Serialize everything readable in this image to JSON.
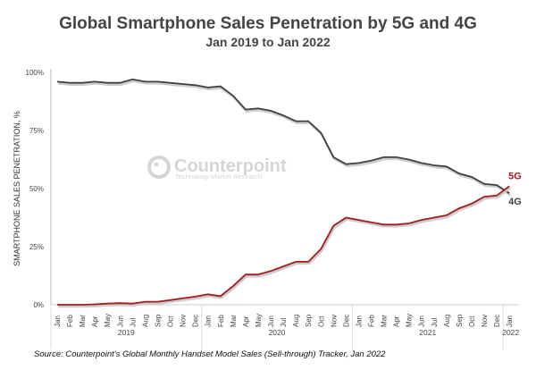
{
  "chart_data": {
    "type": "line",
    "title": "Global Smartphone Sales Penetration by 5G and 4G",
    "subtitle": "Jan 2019 to Jan 2022",
    "ylabel": "SMARTPHONE SALES PENETRATION, %",
    "xlabel": "",
    "ylim": [
      0,
      100
    ],
    "yticks": [
      "0%",
      "25%",
      "50%",
      "75%",
      "100%"
    ],
    "x": [
      "Jan",
      "Feb",
      "Mar",
      "Apr",
      "May",
      "Jun",
      "Jul",
      "Aug",
      "Sep",
      "Oct",
      "Nov",
      "Dec",
      "Jan",
      "Feb",
      "Mar",
      "Apr",
      "May",
      "Jun",
      "Jul",
      "Aug",
      "Sep",
      "Oct",
      "Nov",
      "Dec",
      "Jan",
      "Feb",
      "Mar",
      "Apr",
      "May",
      "Jun",
      "Jul",
      "Aug",
      "Sep",
      "Oct",
      "Nov",
      "Dec",
      "Jan"
    ],
    "years": [
      {
        "label": "2019",
        "start": 0,
        "end": 11
      },
      {
        "label": "2020",
        "start": 12,
        "end": 23
      },
      {
        "label": "2021",
        "start": 24,
        "end": 35
      },
      {
        "label": "2022",
        "start": 36,
        "end": 36
      }
    ],
    "series": [
      {
        "name": "4G",
        "color": "#404040",
        "values": [
          96,
          95.5,
          95.5,
          96,
          95.5,
          95.5,
          97,
          96,
          96,
          95.5,
          95,
          94.5,
          93.5,
          94,
          90,
          84,
          84.5,
          83.5,
          81.5,
          79,
          79,
          74,
          63.5,
          60.5,
          61,
          62,
          63.5,
          63.5,
          62.5,
          61,
          60,
          59.5,
          56.5,
          55,
          52,
          51.5,
          48
        ]
      },
      {
        "name": "5G",
        "color": "#a01c1c",
        "values": [
          0,
          0,
          0,
          0.2,
          0.5,
          0.7,
          0.5,
          1.3,
          1.3,
          2,
          2.8,
          3.5,
          4.5,
          3.7,
          8,
          13,
          13,
          14.5,
          16.5,
          18.5,
          18.5,
          24,
          34,
          37.5,
          36.5,
          35.5,
          34.5,
          34.5,
          35,
          36.5,
          37.5,
          38.5,
          41.5,
          43.5,
          46.5,
          47,
          51
        ]
      }
    ],
    "grid": false,
    "legend": "end-of-line labels"
  },
  "watermark": {
    "brand": "Counterpoint",
    "tagline": "Technology Market Research"
  },
  "source": "Source: Counterpoint's Global Monthly Handset Model Sales (Sell-through) Tracker, Jan 2022"
}
